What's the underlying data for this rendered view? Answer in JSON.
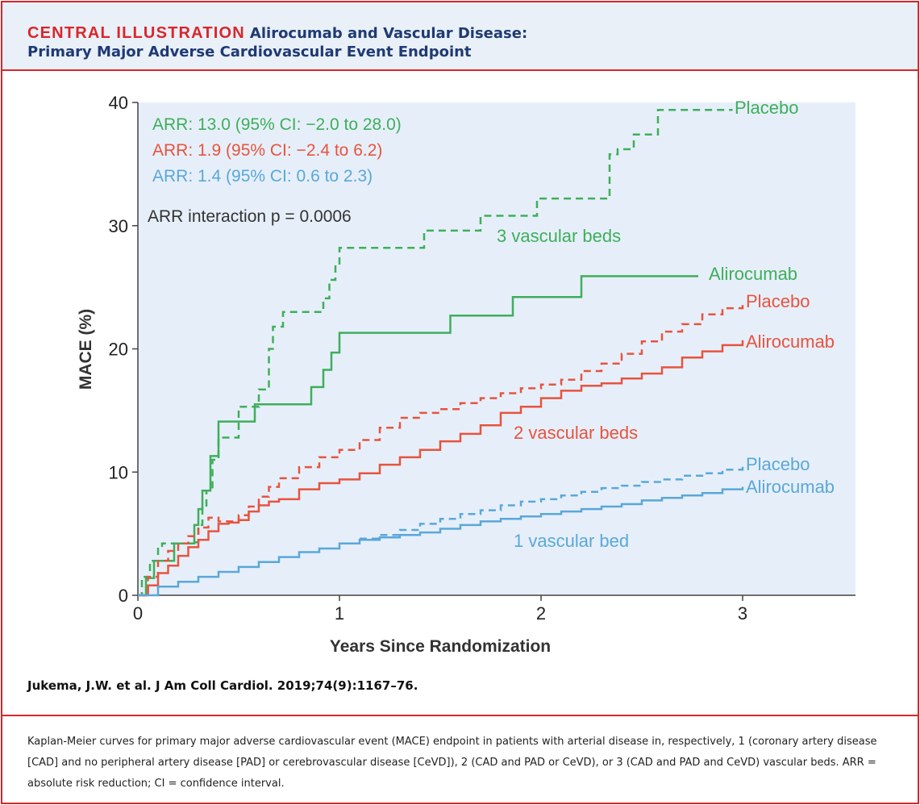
{
  "header": {
    "kicker": "CENTRAL ILLUSTRATION",
    "title_line1": "Alirocumab and Vascular Disease:",
    "title_line2": "Primary Major Adverse Cardiovascular Event Endpoint"
  },
  "colors": {
    "frame_red": "#d9262c",
    "header_bg": "#e9f0f7",
    "title_navy": "#1f3a73",
    "plot_bg": "#e6eff9",
    "green": "#3fae5b",
    "red": "#e8533f",
    "blue": "#5aa7da",
    "annotation_dark": "#333333"
  },
  "chart_data": {
    "type": "line",
    "step": true,
    "xlabel": "Years Since Randomization",
    "ylabel": "MACE (%)",
    "xlim": [
      0,
      3.55
    ],
    "ylim": [
      0,
      40
    ],
    "xticks": [
      "0",
      "1",
      "2",
      "3"
    ],
    "yticks": [
      "0",
      "10",
      "20",
      "30",
      "40"
    ],
    "annotations": {
      "arr_green": "ARR: 13.0 (95% CI: −2.0 to 28.0)",
      "arr_red": "ARR: 1.9 (95% CI: −2.4 to 6.2)",
      "arr_blue": "ARR: 1.4 (95% CI: 0.6 to 2.3)",
      "interaction": "ARR interaction p = 0.0006"
    },
    "group_labels": {
      "three": "3 vascular beds",
      "two": "2 vascular beds",
      "one": "1 vascular bed"
    },
    "series": [
      {
        "name": "Placebo",
        "group": "3 vascular beds",
        "color": "green",
        "dashed": true,
        "x": [
          0,
          0.02,
          0.06,
          0.1,
          0.12,
          0.15,
          0.2,
          0.26,
          0.3,
          0.32,
          0.34,
          0.37,
          0.4,
          0.44,
          0.5,
          0.53,
          0.6,
          0.65,
          0.67,
          0.72,
          0.8,
          0.88,
          0.92,
          0.95,
          0.98,
          1.0,
          1.1,
          1.3,
          1.42,
          1.5,
          1.6,
          1.7,
          1.8,
          1.98,
          2.2,
          2.34,
          2.38,
          2.42,
          2.46,
          2.54,
          2.58,
          2.75
        ],
        "y": [
          0,
          1.5,
          2.8,
          4.0,
          4.2,
          4.2,
          4.2,
          4.3,
          5.7,
          7.2,
          8.5,
          11.0,
          12.8,
          12.8,
          15.3,
          15.3,
          16.7,
          20.0,
          21.8,
          23.0,
          23.0,
          23.0,
          24.1,
          25.6,
          26.8,
          28.2,
          28.2,
          28.2,
          29.6,
          29.6,
          29.6,
          30.8,
          30.8,
          32.2,
          32.2,
          35.8,
          36.2,
          36.2,
          37.4,
          37.4,
          39.4,
          39.4
        ]
      },
      {
        "name": "Alirocumab",
        "group": "3 vascular beds",
        "color": "green",
        "dashed": false,
        "x": [
          0,
          0.04,
          0.08,
          0.18,
          0.28,
          0.3,
          0.32,
          0.36,
          0.4,
          0.48,
          0.58,
          0.7,
          0.86,
          0.92,
          0.96,
          1.0,
          1.1,
          1.3,
          1.55,
          1.7,
          1.86,
          2.0,
          2.2,
          2.4,
          2.6,
          2.78
        ],
        "y": [
          0,
          1.4,
          2.8,
          4.2,
          5.7,
          7.0,
          8.5,
          11.3,
          14.1,
          14.1,
          15.5,
          15.5,
          16.9,
          18.3,
          19.7,
          21.3,
          21.3,
          21.3,
          22.7,
          22.7,
          24.2,
          24.2,
          25.9,
          25.9,
          25.9,
          25.9
        ]
      },
      {
        "name": "Placebo",
        "group": "2 vascular beds",
        "color": "red",
        "dashed": true,
        "x": [
          0,
          0.05,
          0.1,
          0.15,
          0.2,
          0.25,
          0.3,
          0.35,
          0.4,
          0.45,
          0.5,
          0.55,
          0.6,
          0.65,
          0.7,
          0.8,
          0.9,
          1.0,
          1.1,
          1.2,
          1.3,
          1.4,
          1.5,
          1.6,
          1.7,
          1.8,
          1.9,
          2.0,
          2.1,
          2.2,
          2.3,
          2.4,
          2.5,
          2.6,
          2.7,
          2.8,
          2.9,
          3.0
        ],
        "y": [
          0,
          1.5,
          2.8,
          3.6,
          4.2,
          4.8,
          5.5,
          6.3,
          6.0,
          6.0,
          6.5,
          7.2,
          8.0,
          8.8,
          9.5,
          10.4,
          11.2,
          11.8,
          12.6,
          13.6,
          14.4,
          14.8,
          15.1,
          15.6,
          16.0,
          16.4,
          16.8,
          17.1,
          17.5,
          18.2,
          18.8,
          19.6,
          20.6,
          21.4,
          22.0,
          22.8,
          23.3,
          23.7
        ]
      },
      {
        "name": "Alirocumab",
        "group": "2 vascular beds",
        "color": "red",
        "dashed": false,
        "x": [
          0,
          0.05,
          0.1,
          0.15,
          0.2,
          0.25,
          0.3,
          0.35,
          0.4,
          0.45,
          0.5,
          0.55,
          0.6,
          0.65,
          0.7,
          0.8,
          0.9,
          1.0,
          1.1,
          1.2,
          1.3,
          1.4,
          1.5,
          1.6,
          1.7,
          1.8,
          1.9,
          2.0,
          2.1,
          2.2,
          2.3,
          2.4,
          2.5,
          2.6,
          2.7,
          2.8,
          2.9,
          3.0
        ],
        "y": [
          0,
          0.8,
          1.8,
          2.4,
          3.2,
          3.9,
          4.5,
          5.2,
          5.8,
          5.9,
          6.1,
          6.8,
          7.3,
          7.6,
          7.8,
          8.6,
          9.1,
          9.4,
          9.9,
          10.6,
          11.2,
          11.8,
          12.5,
          13.1,
          13.8,
          14.8,
          15.3,
          16.0,
          16.6,
          17.0,
          17.2,
          17.6,
          18.0,
          18.5,
          19.3,
          19.8,
          20.3,
          20.7
        ]
      },
      {
        "name": "Placebo",
        "group": "1 vascular bed",
        "color": "blue",
        "dashed": true,
        "x": [
          1.1,
          1.2,
          1.3,
          1.4,
          1.5,
          1.6,
          1.7,
          1.8,
          1.9,
          2.0,
          2.1,
          2.2,
          2.3,
          2.4,
          2.5,
          2.6,
          2.7,
          2.8,
          2.9,
          3.0
        ],
        "y": [
          4.6,
          4.9,
          5.3,
          5.8,
          6.2,
          6.6,
          6.9,
          7.3,
          7.6,
          7.8,
          8.1,
          8.4,
          8.7,
          8.9,
          9.2,
          9.4,
          9.7,
          9.9,
          10.2,
          10.5
        ]
      },
      {
        "name": "Alirocumab",
        "group": "1 vascular bed",
        "color": "blue",
        "dashed": false,
        "x": [
          0,
          0.1,
          0.2,
          0.3,
          0.4,
          0.5,
          0.6,
          0.7,
          0.8,
          0.9,
          1.0,
          1.1,
          1.2,
          1.3,
          1.4,
          1.5,
          1.6,
          1.7,
          1.8,
          1.9,
          2.0,
          2.1,
          2.2,
          2.3,
          2.4,
          2.5,
          2.6,
          2.7,
          2.8,
          2.9,
          3.0
        ],
        "y": [
          0,
          0.7,
          1.1,
          1.5,
          1.9,
          2.3,
          2.7,
          3.1,
          3.5,
          3.8,
          4.2,
          4.5,
          4.7,
          4.9,
          5.1,
          5.4,
          5.7,
          6.0,
          6.2,
          6.4,
          6.6,
          6.8,
          7.0,
          7.2,
          7.4,
          7.7,
          7.9,
          8.1,
          8.3,
          8.6,
          8.8
        ]
      }
    ]
  },
  "citation": "Jukema, J.W. et al. J Am Coll Cardiol. 2019;74(9):1167–76.",
  "caption": "Kaplan-Meier curves for primary major adverse cardiovascular event (MACE) endpoint in patients with arterial disease in, respectively, 1 (coronary artery disease [CAD] and no peripheral artery disease [PAD] or cerebrovascular disease [CeVD]), 2 (CAD and PAD or CeVD), or 3 (CAD and PAD and CeVD) vascular beds. ARR = absolute risk reduction; CI = confidence interval."
}
